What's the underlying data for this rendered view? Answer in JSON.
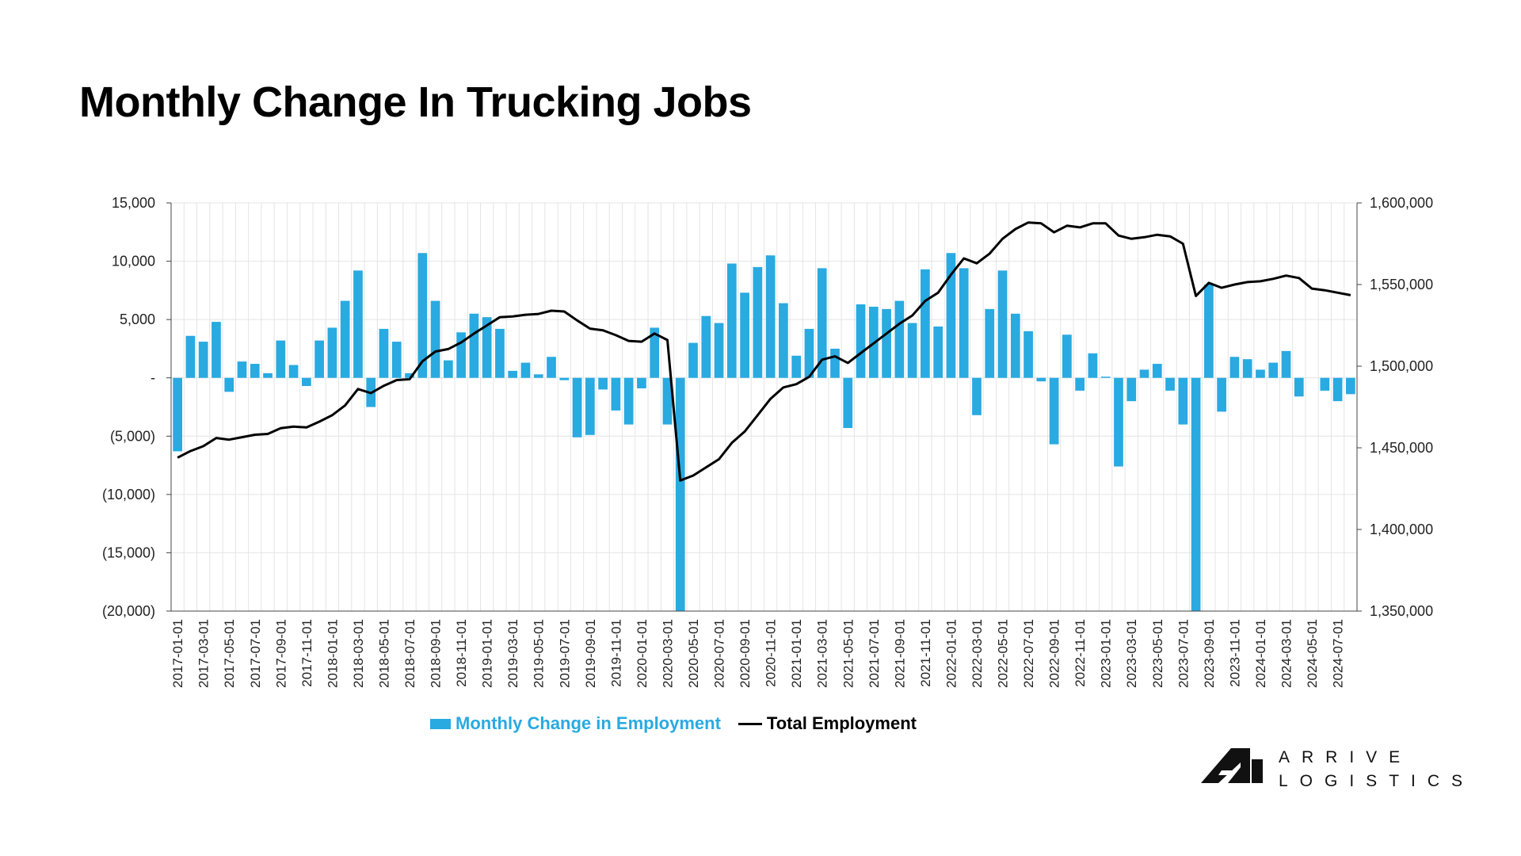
{
  "title": "Monthly Change In Trucking Jobs",
  "colors": {
    "bar": "#29aae1",
    "line": "#000000",
    "grid": "#e4e4e4",
    "axis": "#444444"
  },
  "legend": {
    "bar_label": "Monthly Change in Employment",
    "line_label": "Total Employment"
  },
  "logo": {
    "line1": "ARRIVE",
    "line2": "LOGISTICS",
    "mark": "arrive-logo-mark"
  },
  "chart_data": {
    "type": "bar",
    "title": "Monthly Change In Trucking Jobs",
    "grid": true,
    "legend_position": "bottom",
    "y_left": {
      "ylim": [
        -20000,
        15000
      ],
      "tick_values": [
        15000,
        10000,
        5000,
        0,
        -5000,
        -10000,
        -15000,
        -20000
      ],
      "tick_labels": [
        "15,000",
        "10,000",
        "5,000",
        "-",
        "(5,000)",
        "(10,000)",
        "(15,000)",
        "(20,000)"
      ]
    },
    "y_right": {
      "ylim": [
        1350000,
        1600000
      ],
      "tick_values": [
        1600000,
        1550000,
        1500000,
        1450000,
        1400000,
        1350000
      ],
      "tick_labels": [
        "1,600,000",
        "1,550,000",
        "1,500,000",
        "1,450,000",
        "1,400,000",
        "1,350,000"
      ]
    },
    "x": [
      "2017-01-01",
      "2017-02-01",
      "2017-03-01",
      "2017-04-01",
      "2017-05-01",
      "2017-06-01",
      "2017-07-01",
      "2017-08-01",
      "2017-09-01",
      "2017-10-01",
      "2017-11-01",
      "2017-12-01",
      "2018-01-01",
      "2018-02-01",
      "2018-03-01",
      "2018-04-01",
      "2018-05-01",
      "2018-06-01",
      "2018-07-01",
      "2018-08-01",
      "2018-09-01",
      "2018-10-01",
      "2018-11-01",
      "2018-12-01",
      "2019-01-01",
      "2019-02-01",
      "2019-03-01",
      "2019-04-01",
      "2019-05-01",
      "2019-06-01",
      "2019-07-01",
      "2019-08-01",
      "2019-09-01",
      "2019-10-01",
      "2019-11-01",
      "2019-12-01",
      "2020-01-01",
      "2020-02-01",
      "2020-03-01",
      "2020-04-01",
      "2020-05-01",
      "2020-06-01",
      "2020-07-01",
      "2020-08-01",
      "2020-09-01",
      "2020-10-01",
      "2020-11-01",
      "2020-12-01",
      "2021-01-01",
      "2021-02-01",
      "2021-03-01",
      "2021-04-01",
      "2021-05-01",
      "2021-06-01",
      "2021-07-01",
      "2021-08-01",
      "2021-09-01",
      "2021-10-01",
      "2021-11-01",
      "2021-12-01",
      "2022-01-01",
      "2022-02-01",
      "2022-03-01",
      "2022-04-01",
      "2022-05-01",
      "2022-06-01",
      "2022-07-01",
      "2022-08-01",
      "2022-09-01",
      "2022-10-01",
      "2022-11-01",
      "2022-12-01",
      "2023-01-01",
      "2023-02-01",
      "2023-03-01",
      "2023-04-01",
      "2023-05-01",
      "2023-06-01",
      "2023-07-01",
      "2023-08-01",
      "2023-09-01",
      "2023-10-01",
      "2023-11-01",
      "2023-12-01",
      "2024-01-01",
      "2024-02-01",
      "2024-03-01",
      "2024-04-01",
      "2024-05-01",
      "2024-06-01",
      "2024-07-01",
      "2024-08-01"
    ],
    "x_tick_labels": [
      "2017-01-01",
      "2017-03-01",
      "2017-05-01",
      "2017-07-01",
      "2017-09-01",
      "2017-11-01",
      "2018-01-01",
      "2018-03-01",
      "2018-05-01",
      "2018-07-01",
      "2018-09-01",
      "2018-11-01",
      "2019-01-01",
      "2019-03-01",
      "2019-05-01",
      "2019-07-01",
      "2019-09-01",
      "2019-11-01",
      "2020-01-01",
      "2020-03-01",
      "2020-05-01",
      "2020-07-01",
      "2020-09-01",
      "2020-11-01",
      "2021-01-01",
      "2021-03-01",
      "2021-05-01",
      "2021-07-01",
      "2021-09-01",
      "2021-11-01",
      "2022-01-01",
      "2022-03-01",
      "2022-05-01",
      "2022-07-01",
      "2022-09-01",
      "2022-11-01",
      "2023-01-01",
      "2023-03-01",
      "2023-05-01",
      "2023-07-01",
      "2023-09-01",
      "2023-11-01",
      "2024-01-01",
      "2024-03-01",
      "2024-05-01",
      "2024-07-01"
    ],
    "series": [
      {
        "name": "Monthly Change in Employment",
        "type": "bar",
        "axis": "left",
        "values": [
          -6300,
          3600,
          3100,
          4800,
          -1200,
          1400,
          1200,
          400,
          3200,
          1100,
          -700,
          3200,
          4300,
          6600,
          9200,
          -2500,
          4200,
          3100,
          400,
          10700,
          6600,
          1500,
          3900,
          5500,
          5200,
          4200,
          600,
          1300,
          300,
          1800,
          -200,
          -5100,
          -4900,
          -1000,
          -2800,
          -4000,
          -900,
          4300,
          -4000,
          -20000,
          3000,
          5300,
          4700,
          9800,
          7300,
          9500,
          10500,
          6400,
          1900,
          4200,
          9400,
          2500,
          -4300,
          6300,
          6100,
          5900,
          6600,
          4700,
          9300,
          4400,
          10700,
          9400,
          -3200,
          5900,
          9200,
          5500,
          4000,
          -300,
          -5700,
          3700,
          -1100,
          2100,
          100,
          -7600,
          -2000,
          700,
          1200,
          -1100,
          -4000,
          -20000,
          8000,
          -2900,
          1800,
          1600,
          700,
          1300,
          2300,
          -1600,
          0,
          -1100,
          -2000,
          -1400
        ]
      },
      {
        "name": "Total Employment",
        "type": "line",
        "axis": "right",
        "values": [
          1444000,
          1448000,
          1451000,
          1456000,
          1455000,
          1456500,
          1458000,
          1458500,
          1462000,
          1463000,
          1462500,
          1466000,
          1470000,
          1476000,
          1486000,
          1483500,
          1488000,
          1491500,
          1492000,
          1503000,
          1509000,
          1510500,
          1514500,
          1520000,
          1525000,
          1530000,
          1530500,
          1531500,
          1532000,
          1534000,
          1533500,
          1528000,
          1523000,
          1522000,
          1519000,
          1515500,
          1515000,
          1520000,
          1516000,
          1430000,
          1433000,
          1438000,
          1443000,
          1453000,
          1460000,
          1470000,
          1480000,
          1487000,
          1489000,
          1493500,
          1504000,
          1506000,
          1502000,
          1508000,
          1514000,
          1520000,
          1526000,
          1531000,
          1540000,
          1545000,
          1556000,
          1566000,
          1563000,
          1569000,
          1578000,
          1584000,
          1588000,
          1587500,
          1582000,
          1586000,
          1585000,
          1587500,
          1587500,
          1580000,
          1578000,
          1579000,
          1580500,
          1579500,
          1575000,
          1543000,
          1551000,
          1548000,
          1550000,
          1551500,
          1552000,
          1553500,
          1555500,
          1554000,
          1547500,
          1546500,
          1545000,
          1543500
        ]
      }
    ]
  }
}
